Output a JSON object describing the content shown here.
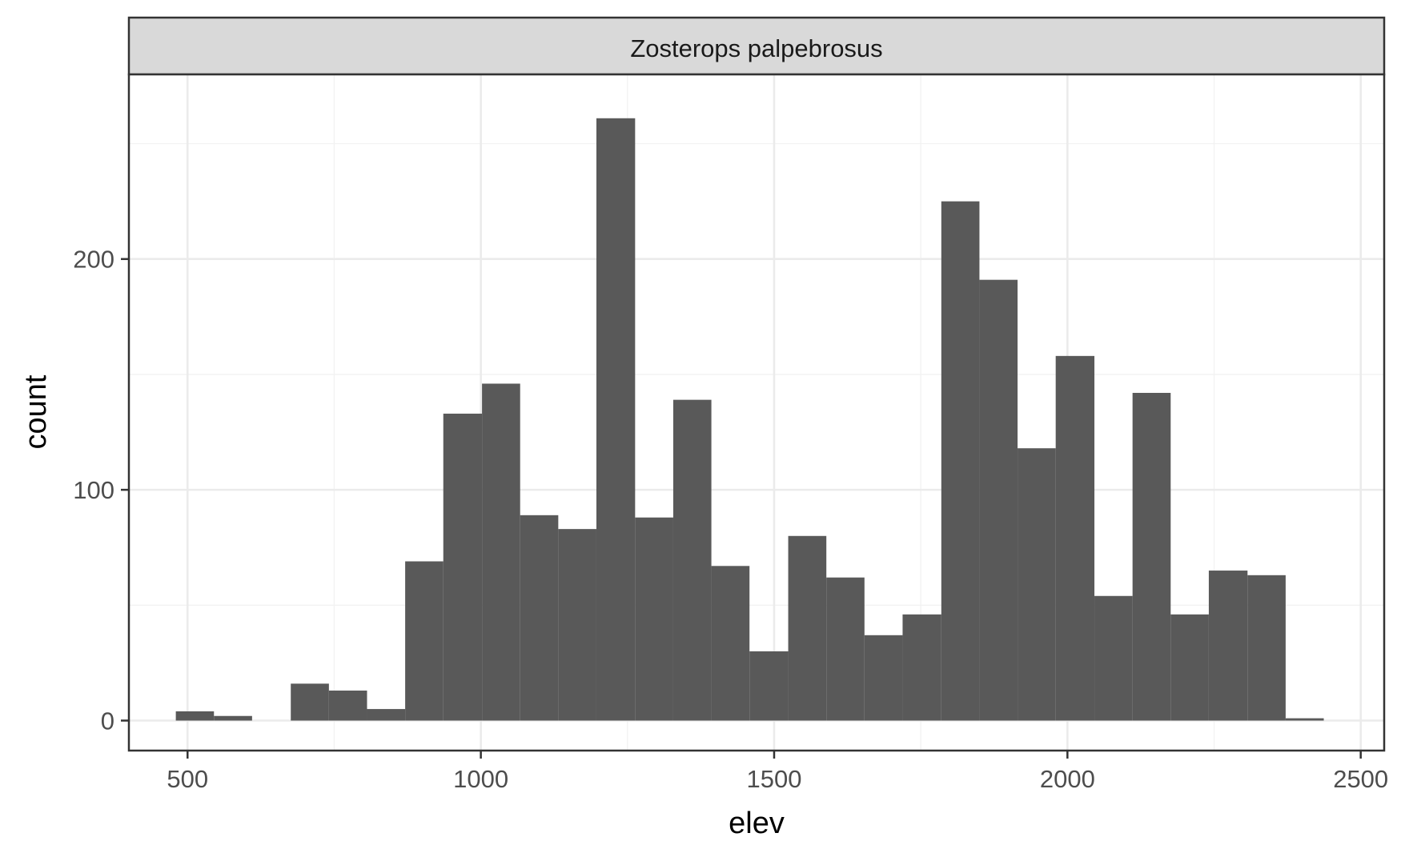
{
  "chart_data": {
    "type": "histogram",
    "facet_label": "Zosterops palpebrosus",
    "xlabel": "elev",
    "ylabel": "count",
    "xlim": [
      400,
      2540
    ],
    "ylim": [
      -13,
      280
    ],
    "x_ticks": [
      500,
      1000,
      1500,
      2000,
      2500
    ],
    "y_ticks": [
      0,
      100,
      200
    ],
    "x_tick_labels": [
      "500",
      "1000",
      "1500",
      "2000",
      "2500"
    ],
    "y_tick_labels": [
      "0",
      "100",
      "200"
    ],
    "bin_width": 65.2,
    "bins": [
      {
        "x0": 480,
        "x1": 545,
        "count": 4
      },
      {
        "x0": 545,
        "x1": 610,
        "count": 2
      },
      {
        "x0": 610,
        "x1": 676,
        "count": 0
      },
      {
        "x0": 676,
        "x1": 741,
        "count": 16
      },
      {
        "x0": 741,
        "x1": 806,
        "count": 13
      },
      {
        "x0": 806,
        "x1": 871,
        "count": 5
      },
      {
        "x0": 871,
        "x1": 936,
        "count": 69
      },
      {
        "x0": 936,
        "x1": 1002,
        "count": 133
      },
      {
        "x0": 1002,
        "x1": 1067,
        "count": 146
      },
      {
        "x0": 1067,
        "x1": 1132,
        "count": 89
      },
      {
        "x0": 1132,
        "x1": 1197,
        "count": 83
      },
      {
        "x0": 1197,
        "x1": 1263,
        "count": 261
      },
      {
        "x0": 1263,
        "x1": 1328,
        "count": 88
      },
      {
        "x0": 1328,
        "x1": 1393,
        "count": 139
      },
      {
        "x0": 1393,
        "x1": 1458,
        "count": 67
      },
      {
        "x0": 1458,
        "x1": 1524,
        "count": 30
      },
      {
        "x0": 1524,
        "x1": 1589,
        "count": 80
      },
      {
        "x0": 1589,
        "x1": 1654,
        "count": 62
      },
      {
        "x0": 1654,
        "x1": 1719,
        "count": 37
      },
      {
        "x0": 1719,
        "x1": 1785,
        "count": 46
      },
      {
        "x0": 1785,
        "x1": 1850,
        "count": 225
      },
      {
        "x0": 1850,
        "x1": 1915,
        "count": 191
      },
      {
        "x0": 1915,
        "x1": 1980,
        "count": 118
      },
      {
        "x0": 1980,
        "x1": 2046,
        "count": 158
      },
      {
        "x0": 2046,
        "x1": 2111,
        "count": 54
      },
      {
        "x0": 2111,
        "x1": 2176,
        "count": 142
      },
      {
        "x0": 2176,
        "x1": 2241,
        "count": 46
      },
      {
        "x0": 2241,
        "x1": 2307,
        "count": 65
      },
      {
        "x0": 2307,
        "x1": 2372,
        "count": 63
      },
      {
        "x0": 2372,
        "x1": 2437,
        "count": 1
      }
    ],
    "bar_color": "#595959",
    "grid": true,
    "grid_major_color": "#ebebeb",
    "grid_minor_color": "#f2f2f2",
    "strip_fill": "#d9d9d9",
    "panel_border_color": "#333333",
    "legend": "none"
  }
}
